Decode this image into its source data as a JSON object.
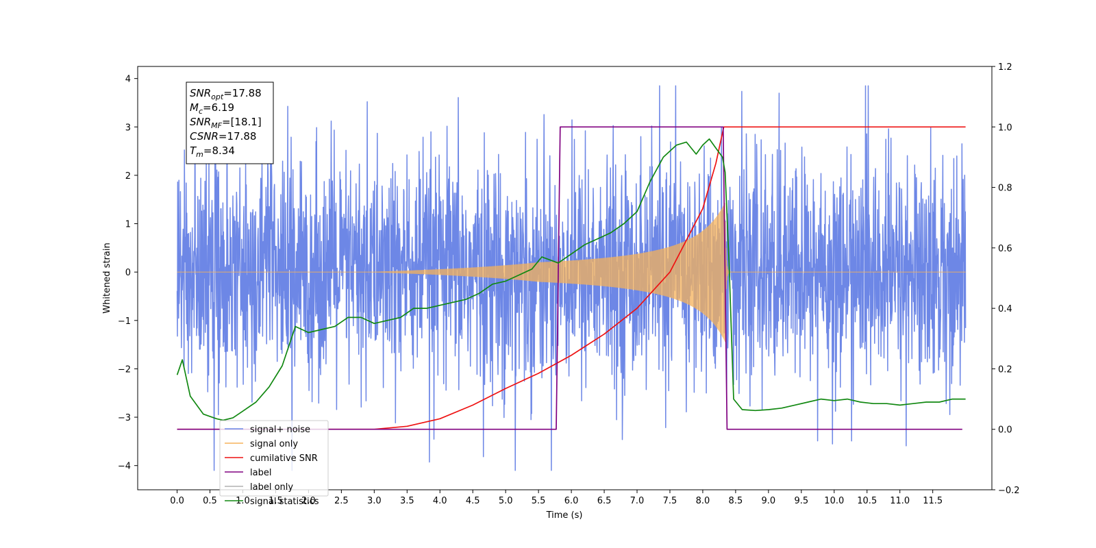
{
  "chart_data": {
    "type": "line",
    "title": "",
    "xlabel": "Time (s)",
    "ylabel": "Whitened strain",
    "xlim": [
      -0.6,
      12.4
    ],
    "ylim": [
      -4.5,
      4.25
    ],
    "y2lim": [
      -0.2,
      1.2
    ],
    "x_ticks": [
      "0.0",
      "0.5",
      "1.0",
      "1.5",
      "2.0",
      "2.5",
      "3.0",
      "3.5",
      "4.0",
      "4.5",
      "5.0",
      "5.5",
      "6.0",
      "6.5",
      "7.0",
      "7.5",
      "8.0",
      "8.5",
      "9.0",
      "9.5",
      "10.0",
      "10.5",
      "11.0",
      "11.5"
    ],
    "y_ticks": [
      "4",
      "3",
      "2",
      "1",
      "0",
      "−1",
      "−2",
      "−3",
      "−4"
    ],
    "y2_ticks": [
      "1.2",
      "1.0",
      "0.8",
      "0.6",
      "0.4",
      "0.2",
      "0.0",
      "−0.2"
    ],
    "grid": false,
    "legend_position": "lower-left",
    "series": [
      {
        "name": "signal+ noise",
        "color": "#6d87e6",
        "axis": "left",
        "kind": "noise",
        "x_range": [
          0.0,
          12.0
        ]
      },
      {
        "name": "signal only",
        "color": "#f5b25a",
        "axis": "left",
        "kind": "chirp",
        "x_range": [
          0.0,
          12.0
        ],
        "merger_time": 8.34
      },
      {
        "name": "cumilative SNR",
        "color": "#ee1111",
        "axis": "right",
        "x": [
          0.0,
          3.0,
          3.5,
          4.0,
          4.5,
          5.0,
          5.5,
          6.0,
          6.5,
          7.0,
          7.5,
          8.0,
          8.2,
          8.32,
          8.35,
          12.0
        ],
        "y": [
          0.0,
          0.0,
          0.01,
          0.035,
          0.08,
          0.135,
          0.185,
          0.245,
          0.315,
          0.4,
          0.52,
          0.73,
          0.88,
          1.0,
          1.0,
          1.0
        ]
      },
      {
        "name": "label",
        "color": "#800080",
        "axis": "right",
        "x": [
          0.0,
          5.77,
          5.83,
          8.31,
          8.37,
          11.95
        ],
        "y": [
          0.0,
          0.0,
          1.0,
          1.0,
          0.0,
          0.0
        ]
      },
      {
        "name": "label only",
        "color": "#b0b0b0",
        "axis": "right",
        "hidden": true,
        "x": [],
        "y": []
      },
      {
        "name": "signal statistics",
        "color": "#118811",
        "axis": "right",
        "x": [
          0.0,
          0.08,
          0.2,
          0.4,
          0.6,
          0.7,
          0.85,
          1.0,
          1.2,
          1.4,
          1.6,
          1.8,
          1.9,
          2.0,
          2.2,
          2.4,
          2.6,
          2.8,
          3.0,
          3.2,
          3.4,
          3.6,
          3.8,
          4.0,
          4.2,
          4.4,
          4.6,
          4.8,
          5.0,
          5.2,
          5.4,
          5.55,
          5.8,
          6.0,
          6.2,
          6.4,
          6.6,
          6.8,
          7.0,
          7.2,
          7.4,
          7.6,
          7.75,
          7.9,
          8.0,
          8.1,
          8.2,
          8.3,
          8.34,
          8.4,
          8.47,
          8.6,
          8.8,
          9.0,
          9.2,
          9.4,
          9.6,
          9.8,
          10.0,
          10.2,
          10.4,
          10.6,
          10.8,
          11.0,
          11.2,
          11.4,
          11.6,
          11.8,
          12.0
        ],
        "y": [
          0.18,
          0.23,
          0.11,
          0.05,
          0.035,
          0.03,
          0.038,
          0.06,
          0.09,
          0.14,
          0.21,
          0.34,
          0.33,
          0.32,
          0.33,
          0.34,
          0.37,
          0.37,
          0.35,
          0.36,
          0.37,
          0.4,
          0.4,
          0.41,
          0.42,
          0.43,
          0.45,
          0.48,
          0.49,
          0.51,
          0.53,
          0.57,
          0.55,
          0.58,
          0.61,
          0.63,
          0.65,
          0.68,
          0.72,
          0.82,
          0.9,
          0.94,
          0.95,
          0.91,
          0.94,
          0.96,
          0.93,
          0.9,
          0.85,
          0.55,
          0.1,
          0.065,
          0.062,
          0.065,
          0.07,
          0.08,
          0.09,
          0.1,
          0.095,
          0.1,
          0.09,
          0.085,
          0.085,
          0.08,
          0.085,
          0.09,
          0.09,
          0.1,
          0.1
        ]
      }
    ]
  },
  "info_box": {
    "lines": [
      {
        "sym": "SNR",
        "sub": "opt",
        "val": "=17.88"
      },
      {
        "sym": "M",
        "sub": "c",
        "val": "=6.19"
      },
      {
        "sym": "SNR",
        "sub": "MF",
        "val": "=[18.1]"
      },
      {
        "sym": "CSNR",
        "sub": "",
        "val": "=17.88"
      },
      {
        "sym": "T",
        "sub": "m",
        "val": "=8.34"
      }
    ]
  },
  "legend": [
    {
      "label": "signal+ noise",
      "color": "#6d87e6"
    },
    {
      "label": "signal only",
      "color": "#f5b25a"
    },
    {
      "label": "cumilative SNR",
      "color": "#ee1111"
    },
    {
      "label": "label",
      "color": "#800080"
    },
    {
      "label": "label only",
      "color": "#b0b0b0"
    },
    {
      "label": "signal statistics",
      "color": "#118811"
    }
  ]
}
